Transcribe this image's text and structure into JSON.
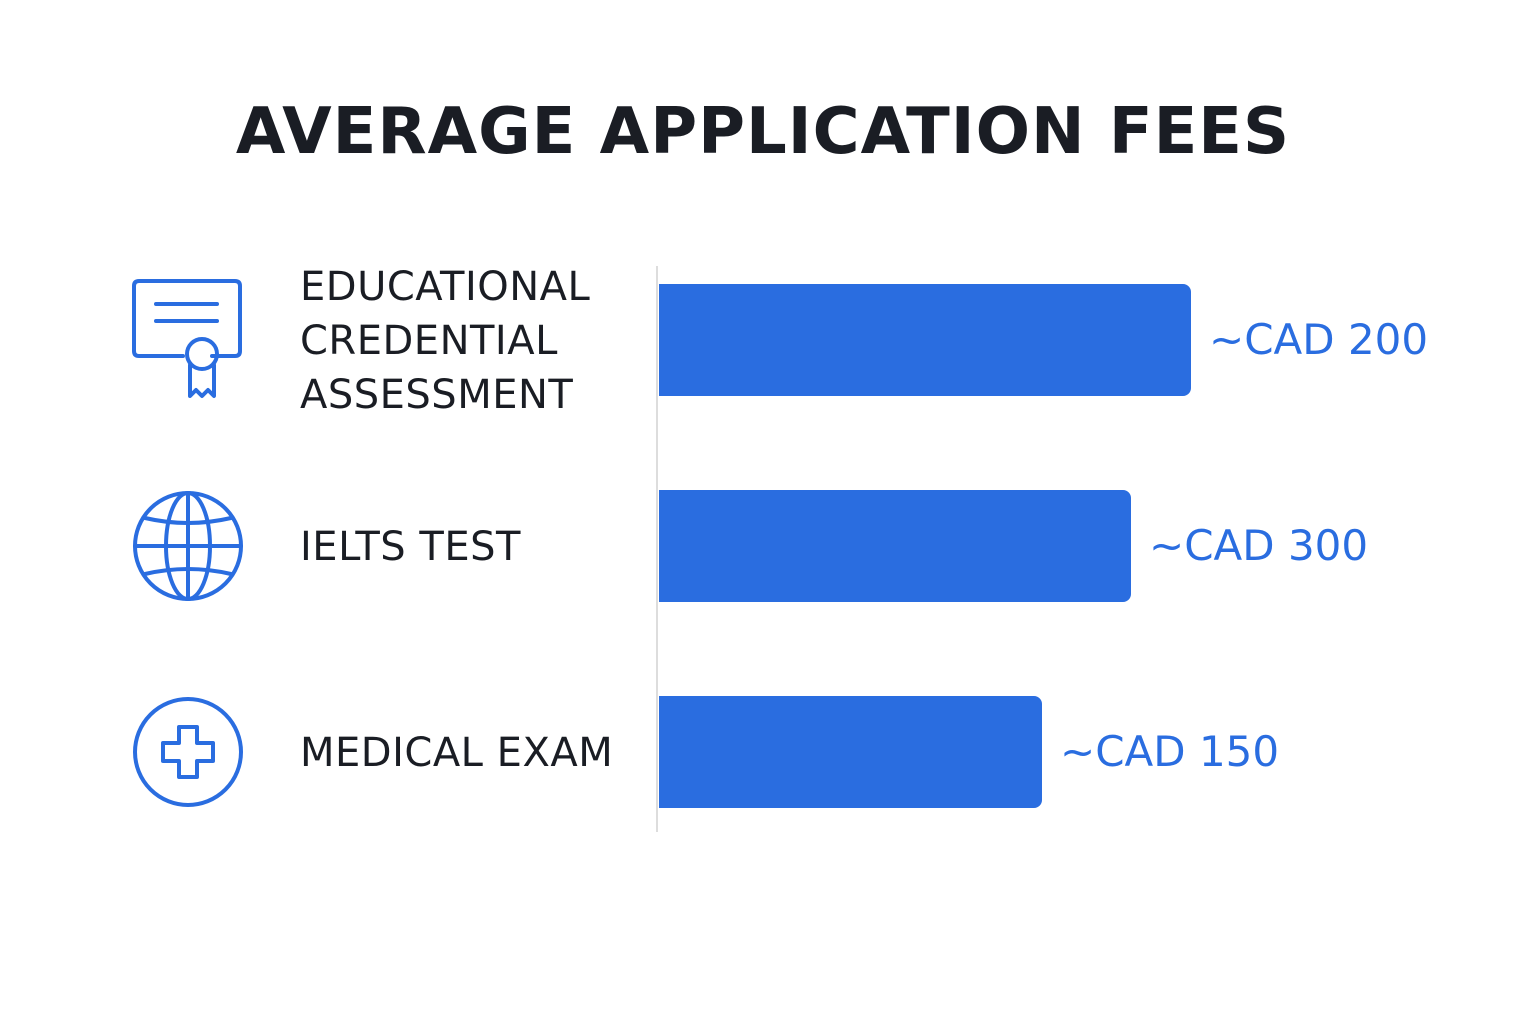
{
  "title": "AVERAGE APPLICATION FEES",
  "colors": {
    "accent": "#2a6de0",
    "text": "#1a1d24",
    "axis": "#dddddd"
  },
  "chart_data": {
    "type": "bar",
    "orientation": "horizontal",
    "title": "AVERAGE APPLICATION FEES",
    "grid": false,
    "legend": "none",
    "categories": [
      {
        "lines": [
          "EDUCATIONAL",
          "CREDENTIAL",
          "ASSESSMENT"
        ],
        "icon": "certificate-icon",
        "value": 200,
        "value_label": "~CAD 200"
      },
      {
        "lines": [
          "IELTS TEST"
        ],
        "icon": "globe-icon",
        "value": 300,
        "value_label": "~CAD 300"
      },
      {
        "lines": [
          "MEDICAL EXAM"
        ],
        "icon": "medical-cross-icon",
        "value": 150,
        "value_label": "~CAD 150"
      }
    ]
  }
}
